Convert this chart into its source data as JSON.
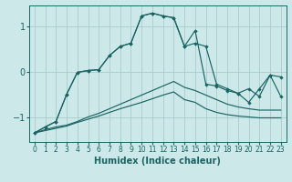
{
  "xlabel": "Humidex (Indice chaleur)",
  "bg_color": "#cde8e8",
  "line_color": "#1a6464",
  "grid_color": "#a8cccc",
  "xlim": [
    -0.5,
    23.5
  ],
  "ylim": [
    -1.55,
    1.45
  ],
  "yticks": [
    -1,
    0,
    1
  ],
  "xticks": [
    0,
    1,
    2,
    3,
    4,
    5,
    6,
    7,
    8,
    9,
    10,
    11,
    12,
    13,
    14,
    15,
    16,
    17,
    18,
    19,
    20,
    21,
    22,
    23
  ],
  "y_main": [
    -1.35,
    -1.22,
    -1.1,
    -0.5,
    -0.02,
    0.02,
    0.04,
    0.35,
    0.55,
    0.62,
    1.22,
    1.28,
    1.22,
    1.18,
    0.55,
    0.62,
    0.55,
    -0.28,
    -0.38,
    -0.48,
    -0.38,
    -0.55,
    -0.08,
    -0.12
  ],
  "y_main2": [
    -1.35,
    -1.22,
    -1.1,
    -0.5,
    -0.02,
    0.02,
    0.04,
    0.35,
    0.55,
    0.62,
    1.22,
    1.28,
    1.22,
    1.18,
    0.55,
    0.9,
    -0.28,
    -0.32,
    -0.42,
    -0.48,
    -0.68,
    -0.38,
    -0.08,
    -0.55
  ],
  "y_lower1": [
    -1.35,
    -1.28,
    -1.22,
    -1.18,
    -1.1,
    -1.0,
    -0.92,
    -0.82,
    -0.72,
    -0.62,
    -0.52,
    -0.42,
    -0.32,
    -0.22,
    -0.35,
    -0.42,
    -0.52,
    -0.62,
    -0.72,
    -0.78,
    -0.82,
    -0.85,
    -0.85,
    -0.85
  ],
  "y_lower2": [
    -1.35,
    -1.3,
    -1.25,
    -1.2,
    -1.12,
    -1.05,
    -0.98,
    -0.9,
    -0.82,
    -0.75,
    -0.68,
    -0.6,
    -0.52,
    -0.45,
    -0.62,
    -0.68,
    -0.82,
    -0.9,
    -0.95,
    -0.98,
    -1.0,
    -1.02,
    -1.02,
    -1.02
  ]
}
